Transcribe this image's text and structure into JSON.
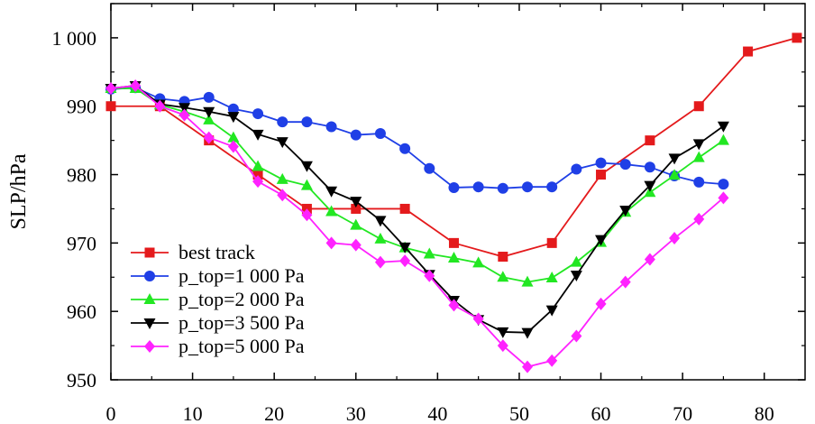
{
  "chart_data": {
    "type": "line",
    "title": "",
    "xlabel": "",
    "ylabel": "SLP/hPa",
    "xlim": [
      0,
      85
    ],
    "ylim": [
      950,
      1005
    ],
    "xticks": [
      0,
      10,
      20,
      30,
      40,
      50,
      60,
      70,
      80
    ],
    "xtick_labels": [
      "0",
      "10",
      "20",
      "30",
      "40",
      "50",
      "60",
      "70",
      "80"
    ],
    "yticks": [
      950,
      960,
      970,
      980,
      990,
      1000
    ],
    "ytick_labels": [
      "950",
      "960",
      "970",
      "980",
      "990",
      "1 000"
    ],
    "grid": false,
    "legend_position": "bottom-left",
    "series": [
      {
        "name": "best track",
        "color": "#e41a1c",
        "marker": "square",
        "x": [
          0,
          6,
          12,
          18,
          24,
          30,
          36,
          42,
          48,
          54,
          60,
          66,
          72,
          78,
          84
        ],
        "y": [
          990,
          990,
          985,
          980,
          975,
          975,
          975,
          970,
          968,
          970,
          980,
          985,
          990,
          998,
          1000
        ]
      },
      {
        "name": "p_top=1 000 Pa",
        "color": "#1f3fe6",
        "marker": "circle",
        "x": [
          0,
          3,
          6,
          9,
          12,
          15,
          18,
          21,
          24,
          27,
          30,
          33,
          36,
          39,
          42,
          45,
          48,
          51,
          54,
          57,
          60,
          63,
          66,
          69,
          72,
          75
        ],
        "y": [
          992.5,
          992.7,
          991.1,
          990.7,
          991.3,
          989.6,
          988.9,
          987.7,
          987.7,
          987.0,
          985.8,
          986.0,
          983.8,
          980.9,
          978.1,
          978.2,
          978.0,
          978.2,
          978.2,
          980.8,
          981.7,
          981.5,
          981.1,
          979.8,
          978.9,
          978.6
        ]
      },
      {
        "name": "p_top=2 000 Pa",
        "color": "#22e722",
        "marker": "triangle-up",
        "x": [
          0,
          3,
          6,
          9,
          12,
          15,
          18,
          21,
          24,
          27,
          30,
          33,
          36,
          39,
          42,
          45,
          48,
          51,
          54,
          57,
          60,
          63,
          66,
          69,
          72,
          75
        ],
        "y": [
          992.6,
          992.6,
          990.2,
          989.2,
          988.0,
          985.4,
          981.2,
          979.3,
          978.4,
          974.6,
          972.6,
          970.6,
          969.3,
          968.4,
          967.8,
          967.1,
          965.0,
          964.3,
          964.9,
          967.2,
          970.1,
          974.5,
          977.4,
          979.9,
          982.5,
          985.0
        ]
      },
      {
        "name": "p_top=3 500 Pa",
        "color": "#000000",
        "marker": "triangle-down",
        "x": [
          0,
          3,
          6,
          9,
          12,
          15,
          18,
          21,
          24,
          27,
          30,
          33,
          36,
          39,
          42,
          45,
          48,
          51,
          54,
          57,
          60,
          63,
          66,
          69,
          72,
          75
        ],
        "y": [
          992.6,
          993.0,
          990.3,
          989.8,
          989.2,
          988.5,
          985.9,
          984.8,
          981.3,
          977.6,
          976.1,
          973.3,
          969.4,
          965.4,
          961.6,
          958.8,
          957.0,
          956.9,
          960.2,
          965.3,
          970.5,
          974.8,
          978.4,
          982.4,
          984.5,
          987.1
        ]
      },
      {
        "name": "p_top=5 000 Pa",
        "color": "#ff22ff",
        "marker": "diamond",
        "x": [
          0,
          3,
          6,
          9,
          12,
          15,
          18,
          21,
          24,
          27,
          30,
          33,
          36,
          39,
          42,
          45,
          48,
          51,
          54,
          57,
          60,
          63,
          66,
          69,
          72,
          75
        ],
        "y": [
          992.6,
          993.0,
          990.0,
          988.7,
          985.4,
          984.1,
          979.0,
          977.0,
          974.1,
          970.0,
          969.7,
          967.2,
          967.4,
          965.2,
          960.9,
          958.9,
          955.0,
          951.9,
          952.8,
          956.4,
          961.1,
          964.3,
          967.6,
          970.7,
          973.5,
          976.6
        ]
      }
    ]
  }
}
